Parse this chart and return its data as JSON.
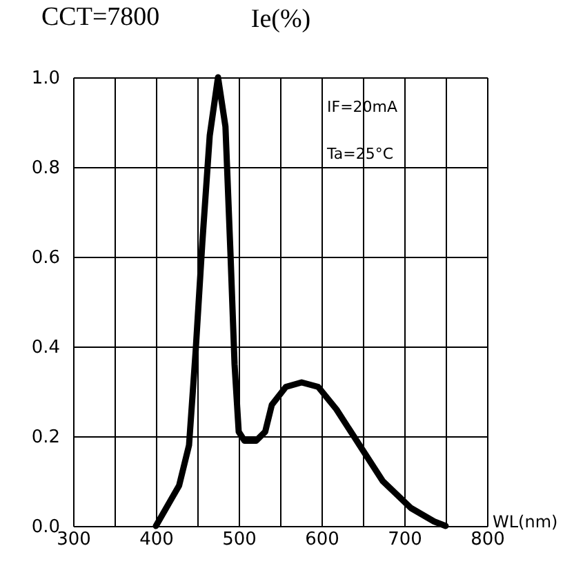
{
  "chart_data": {
    "type": "line",
    "title": "CCT=7800",
    "ylabel": "Ie(%)",
    "xlabel": "WL(nm)",
    "annotations": [
      "IF=20mA",
      "Ta=25°C"
    ],
    "x": [
      400,
      428,
      440,
      448,
      456,
      465,
      475,
      484,
      490,
      495,
      500,
      507,
      521,
      532,
      540,
      557,
      576,
      596,
      618,
      646,
      674,
      708,
      736,
      750
    ],
    "series": [
      {
        "color": "#000000",
        "values": [
          0,
          0.09,
          0.18,
          0.39,
          0.63,
          0.87,
          1.0,
          0.89,
          0.61,
          0.36,
          0.21,
          0.19,
          0.19,
          0.21,
          0.27,
          0.31,
          0.32,
          0.31,
          0.26,
          0.18,
          0.1,
          0.04,
          0.01,
          0
        ]
      }
    ],
    "xlim": [
      300,
      800
    ],
    "ylim": [
      0,
      1.0
    ],
    "xticks": [
      300,
      {
        "value": 350,
        "label": null
      },
      400,
      {
        "value": 450,
        "label": null
      },
      500,
      {
        "value": 550,
        "label": null
      },
      600,
      {
        "value": 650,
        "label": null
      },
      700,
      {
        "value": 750,
        "label": null
      },
      800
    ],
    "yticks": [
      {
        "value": 0,
        "label": "0.0"
      },
      {
        "value": 0.2,
        "label": "0.2"
      },
      {
        "value": 0.4,
        "label": "0.4"
      },
      {
        "value": 0.6,
        "label": "0.6"
      },
      {
        "value": 0.8,
        "label": "0.8"
      },
      {
        "value": 1.0,
        "label": "1.0"
      }
    ],
    "grid": true,
    "line_style": "solid",
    "marker": "none"
  }
}
